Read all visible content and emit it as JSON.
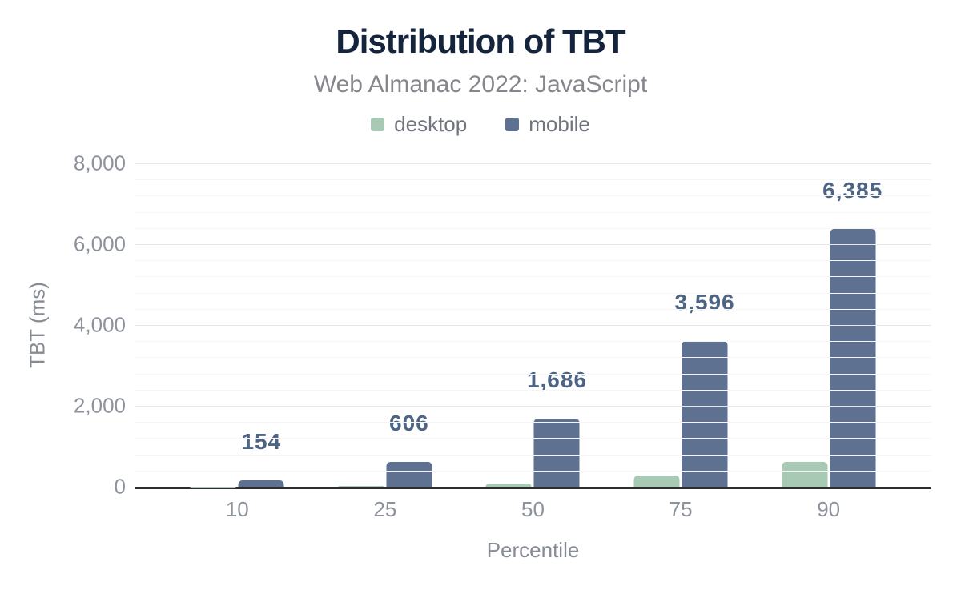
{
  "chart": {
    "title": "Distribution of TBT",
    "subtitle": "Web Almanac 2022: JavaScript"
  },
  "legend": [
    {
      "label": "desktop",
      "color": "#a8c9b4"
    },
    {
      "label": "mobile",
      "color": "#5e7190"
    }
  ],
  "chart_data": {
    "type": "bar",
    "title": "Distribution of TBT",
    "subtitle": "Web Almanac 2022: JavaScript",
    "xlabel": "Percentile",
    "ylabel": "TBT (ms)",
    "categories": [
      "10",
      "25",
      "50",
      "75",
      "90"
    ],
    "series": [
      {
        "name": "desktop",
        "color": "#a8c9b4",
        "values": [
          3,
          16,
          75,
          280,
          605
        ],
        "labels": null
      },
      {
        "name": "mobile",
        "color": "#5e7190",
        "values": [
          154,
          606,
          1686,
          3596,
          6385
        ],
        "labels": [
          "154",
          "606",
          "1,686",
          "3,596",
          "6,385"
        ]
      }
    ],
    "ylim": [
      0,
      8000
    ],
    "yticks": [
      {
        "value": 0,
        "label": "0"
      },
      {
        "value": 2000,
        "label": "2,000"
      },
      {
        "value": 4000,
        "label": "4,000"
      },
      {
        "value": 6000,
        "label": "6,000"
      },
      {
        "value": 8000,
        "label": "8,000"
      }
    ],
    "minor_grid_step": 400,
    "grid": "on",
    "legend_position": "top"
  },
  "colors": {
    "title": "#15243d",
    "subtitle": "#85868e",
    "legend_label": "#6f747d",
    "tick_label": "#8d939c",
    "axis_title": "#878c94",
    "value_label": "#4d6485",
    "axis_line": "#2e2e2e",
    "grid_major": "#e7e7e7",
    "grid_minor": "#f6f6f6",
    "background": "#ffffff"
  }
}
